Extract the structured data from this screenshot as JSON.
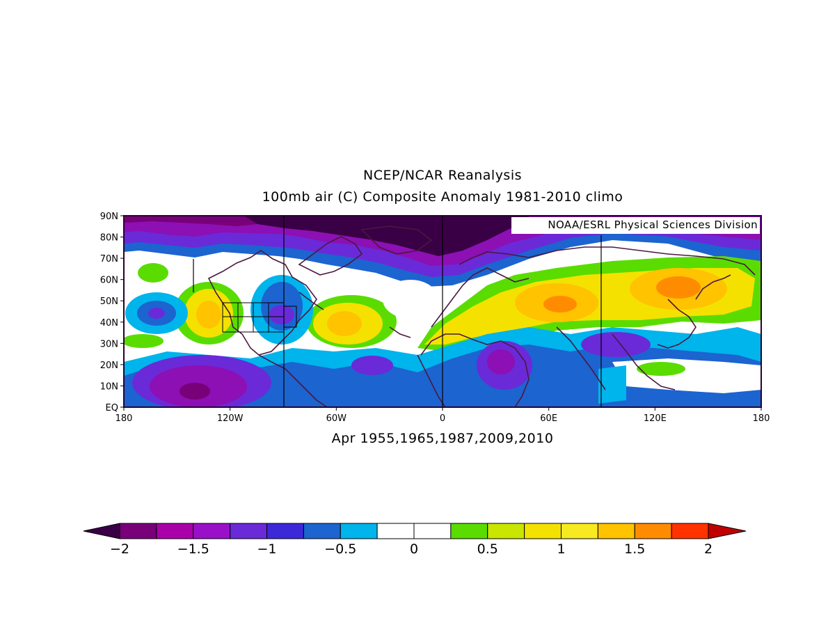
{
  "header": {
    "title": "NCEP/NCAR Reanalysis",
    "subtitle": "100mb air (C) Composite Anomaly 1981-2010 climo"
  },
  "credit": "NOAA/ESRL Physical Sciences Division",
  "footer": {
    "caption": "Apr 1955,1965,1987,2009,2010"
  },
  "axes": {
    "lat_labels": [
      "90N",
      "80N",
      "70N",
      "60N",
      "50N",
      "40N",
      "30N",
      "20N",
      "10N",
      "EQ"
    ],
    "lon_labels": [
      "180",
      "120W",
      "60W",
      "0",
      "60E",
      "120E",
      "180"
    ]
  },
  "colorbar": {
    "labels": [
      "-2",
      "-1.5",
      "-1",
      "-0.5",
      "0",
      "0.5",
      "1",
      "1.5",
      "2"
    ],
    "colors": [
      "#3a0046",
      "#780078",
      "#aa00aa",
      "#9a10c8",
      "#6a2ad8",
      "#3c28d8",
      "#1c64d0",
      "#00b4ec",
      "#ffffff",
      "#ffffff",
      "#5adc00",
      "#c8e600",
      "#f5e100",
      "#f8ea20",
      "#ffc300",
      "#ff8c00",
      "#ff3200",
      "#c00000"
    ]
  },
  "map_colors": {
    "deep_purple": "#3a0046",
    "purple": "#8c10b4",
    "violet": "#6a2ad8",
    "blue": "#1c64d0",
    "cyan": "#00b4ec",
    "green": "#5adc00",
    "yellow": "#f5e100",
    "gold": "#ffc300",
    "orange": "#ff8c00",
    "coast": "#4a1840"
  }
}
